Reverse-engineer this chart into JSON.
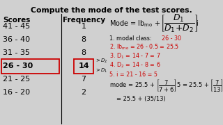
{
  "title": "Compute the mode of the test scores.",
  "bg_color": "#d0d0d0",
  "scores": [
    "41 - 45",
    "36 - 40",
    "31 - 35",
    "26 - 30",
    "21 - 25",
    "16 - 20"
  ],
  "frequencies": [
    "1",
    "8",
    "8",
    "14",
    "7",
    "2"
  ],
  "highlighted_row": 3,
  "text_color_black": "#000000",
  "text_color_red": "#cc0000"
}
